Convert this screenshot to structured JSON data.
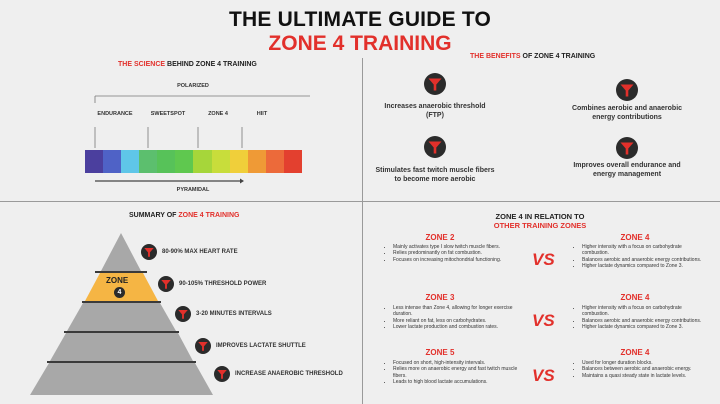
{
  "header": {
    "title_line1": "THE ULTIMATE GUIDE TO",
    "title_line2": "ZONE 4 TRAINING"
  },
  "colors": {
    "accent": "#e2302b",
    "pyramid_highlight": "#f5b544",
    "pyramid_gray": "#a8a8a8",
    "icon_dark": "#2b2b2b"
  },
  "science": {
    "heading_red": "THE SCIENCE",
    "heading_rest": " BEHIND ZONE 4 TRAINING",
    "polarized": "POLARIZED",
    "pyramidal": "PYRAMIDAL",
    "labels": [
      "ENDURANCE",
      "SWEETSPOT",
      "ZONE 4",
      "HIIT"
    ],
    "spectrum_colors": [
      "#4b3f9e",
      "#4f62c6",
      "#5fc6e8",
      "#5cbf6e",
      "#57c259",
      "#5fc84f",
      "#a6d63a",
      "#c8dd3b",
      "#f0cf3a",
      "#ef9a36",
      "#ec6a3a",
      "#e3402f"
    ]
  },
  "benefits": {
    "heading_red": "THE BENEFITS",
    "heading_rest": " OF ZONE 4 TRAINING",
    "items": [
      {
        "text": "Increases anaerobic threshold (FTP)",
        "icon": "funnel-icon"
      },
      {
        "text": "Combines aerobic and anaerobic energy contributions",
        "icon": "funnel-icon"
      },
      {
        "text": "Stimulates fast twitch muscle fibers to become more aerobic",
        "icon": "funnel-icon"
      },
      {
        "text": "Improves overall endurance and energy management",
        "icon": "funnel-icon"
      }
    ]
  },
  "summary": {
    "heading_rest": "SUMMARY OF ",
    "heading_red": "ZONE 4 TRAINING",
    "zone_label": "ZONE",
    "zone_number": "4",
    "points": [
      "80-90% MAX HEART RATE",
      "90-105% THRESHOLD POWER",
      "3-20 MINUTES INTERVALS",
      "IMPROVES LACTATE SHUTTLE",
      "INCREASE ANAEROBIC THRESHOLD"
    ]
  },
  "relation": {
    "heading_line1": "ZONE 4 IN RELATION TO",
    "heading_line2": "OTHER TRAINING ZONES",
    "vs": "VS",
    "comparisons": [
      {
        "left_title": "ZONE 2",
        "left": [
          "Mainly activates type I slow twitch muscle fibers.",
          "Relies predominantly on fat combustion.",
          "Focuses on increasing mitochondrial functioning."
        ],
        "right_title": "ZONE 4",
        "right": [
          "Higher intensity with a focus on carbohydrate combustion.",
          "Balances aerobic and anaerobic energy contributions.",
          "Higher lactate dynamics compared to Zone 3."
        ]
      },
      {
        "left_title": "ZONE 3",
        "left": [
          "Less intense than Zone 4, allowing for longer exercise duration.",
          "More reliant on fat, less on carbohydrates.",
          "Lower lactate production and combustion rates."
        ],
        "right_title": "ZONE 4",
        "right": [
          "Higher intensity with a focus on carbohydrate combustion.",
          "Balances aerobic and anaerobic energy contributions.",
          "Higher lactate dynamics compared to Zone 3."
        ]
      },
      {
        "left_title": "ZONE 5",
        "left": [
          "Focused on short, high-intensity intervals.",
          "Relies more on anaerobic energy and fast twitch muscle fibers.",
          "Leads to high blood lactate accumulations."
        ],
        "right_title": "ZONE 4",
        "right": [
          "Used for longer duration blocks.",
          "Balances between aerobic and anaerobic energy.",
          "Maintains a quasi steady state in lactate levels."
        ]
      }
    ]
  }
}
